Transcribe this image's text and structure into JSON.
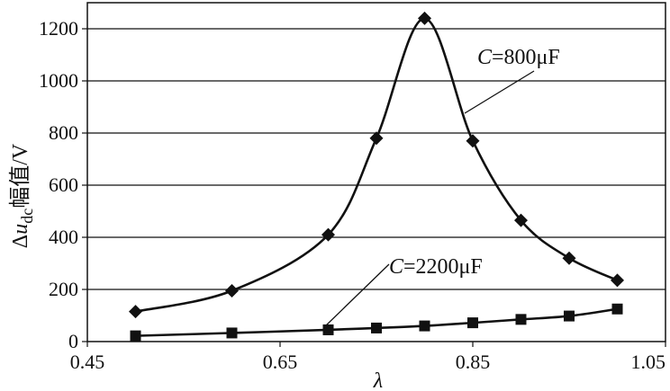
{
  "chart_data": {
    "type": "line",
    "xlabel": "λ",
    "ylabel": {
      "prefix": "Δ",
      "var": "u",
      "sub": "dc",
      "suffix": "幅值/V"
    },
    "xlim": [
      0.45,
      1.05
    ],
    "ylim": [
      0,
      1300
    ],
    "xticks": [
      "0.45",
      "0.65",
      "0.85",
      "1.05"
    ],
    "yticks": [
      "0",
      "200",
      "400",
      "600",
      "800",
      "1000",
      "1200"
    ],
    "grid": true,
    "series": [
      {
        "name": "C=800μF",
        "label_var": "C",
        "label_rest": "=800μF",
        "marker": "diamond",
        "x": [
          0.5,
          0.6,
          0.7,
          0.75,
          0.8,
          0.85,
          0.9,
          0.95,
          1.0
        ],
        "y": [
          115,
          195,
          410,
          780,
          1240,
          770,
          465,
          320,
          235
        ]
      },
      {
        "name": "C=2200μF",
        "label_var": "C",
        "label_rest": "=2200μF",
        "marker": "square",
        "x": [
          0.5,
          0.6,
          0.7,
          0.75,
          0.8,
          0.85,
          0.9,
          0.95,
          1.0
        ],
        "y": [
          22,
          33,
          45,
          52,
          60,
          72,
          85,
          98,
          125
        ]
      }
    ]
  }
}
